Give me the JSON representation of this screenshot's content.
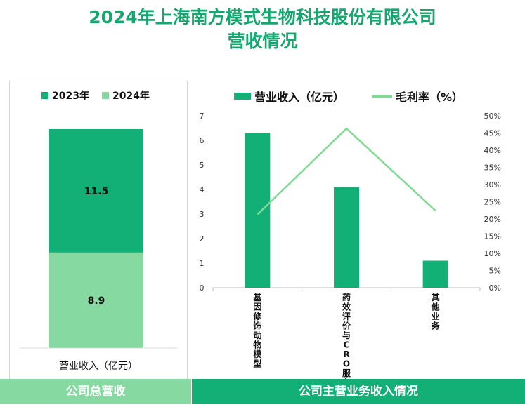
{
  "title_line1": "2024年上海南方模式生物科技股份有限公司",
  "title_line2": "营收情况",
  "colors": {
    "dark_green": "#12b077",
    "light_green": "#86d9a0",
    "line_green": "#7fdb92",
    "title_green": "#14a86e",
    "footer_left": "#86d9a0",
    "footer_right": "#12b077"
  },
  "left_chart": {
    "legend": [
      "2023年",
      "2024年"
    ],
    "xlabel": "营业收入（亿元）",
    "value_2023": "11.5",
    "value_2024": "8.9"
  },
  "right_chart": {
    "legend_bar": "营业收入（亿元）",
    "legend_line": "毛利率（%）",
    "y_left_ticks": [
      "0",
      "1",
      "2",
      "3",
      "4",
      "5",
      "6",
      "7"
    ],
    "y_right_ticks": [
      "0%",
      "5%",
      "10%",
      "15%",
      "20%",
      "25%",
      "30%",
      "35%",
      "40%",
      "45%",
      "50%"
    ],
    "categories": [
      "基因修饰动物模型",
      "药效评价与CRO服务",
      "其他业务"
    ]
  },
  "chart_data": [
    {
      "type": "bar",
      "stacked": true,
      "categories": [
        "营业收入（亿元）"
      ],
      "series": [
        {
          "name": "2023年",
          "values": [
            11.5
          ]
        },
        {
          "name": "2024年",
          "values": [
            8.9
          ]
        }
      ],
      "xlabel": "营业收入（亿元）",
      "legend_position": "top"
    },
    {
      "type": "bar",
      "categories": [
        "基因修饰动物模型",
        "药效评价与CRO服务",
        "其他业务"
      ],
      "series": [
        {
          "name": "营业收入（亿元）",
          "type": "bar",
          "axis": "left",
          "values": [
            6.3,
            4.1,
            1.1
          ]
        },
        {
          "name": "毛利率（%）",
          "type": "line",
          "axis": "right",
          "values": [
            21.3,
            46.3,
            22.4
          ]
        }
      ],
      "ylim_left": [
        0,
        7
      ],
      "ylim_right": [
        0,
        50
      ],
      "legend_position": "top"
    }
  ],
  "footer": {
    "left": "公司总营收",
    "right": "公司主营业务收入情况"
  }
}
